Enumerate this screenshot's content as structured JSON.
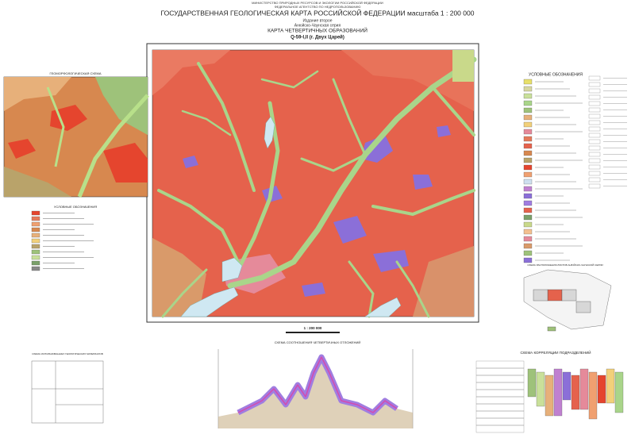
{
  "header": {
    "ministry": "МИНИСТЕРСТВО ПРИРОДНЫХ РЕСУРСОВ И ЭКОЛОГИИ РОССИЙСКОЙ ФЕДЕРАЦИИ",
    "agency": "ФЕДЕРАЛЬНОЕ АГЕНТСТВО ПО НЕДРОПОЛЬЗОВАНИЮ",
    "title": "ГОСУДАРСТВЕННАЯ ГЕОЛОГИЧЕСКАЯ КАРТА РОССИЙСКОЙ ФЕДЕРАЦИИ масштаба 1 : 200 000",
    "edition": "Издание второе",
    "series": "Анюйско-Чаунская серия",
    "map_title": "КАРТА ЧЕТВЕРТИЧНЫХ ОБРАЗОВАНИЙ",
    "sheet": "Q-59-I,II (г. Двух Царей)"
  },
  "geomorph_scheme": {
    "title": "ГЕОМОРФОЛОГИЧЕСКАЯ СХЕМА",
    "legend_title": "УСЛОВНЫЕ ОБОЗНАЧЕНИЯ"
  },
  "legend": {
    "title": "УСЛОВНЫЕ ОБОЗНАЧЕНИЯ"
  },
  "scale": "1 : 200 000",
  "profile": {
    "title": "СХЕМА СООТНОШЕНИЯ ЧЕТВЕРТИЧНЫХ ОТЛОЖЕНИЙ"
  },
  "materials_scheme": {
    "title": "СХЕМА ИСПОЛЬЗОВАННЫХ ГЕОЛОГИЧЕСКИХ МАТЕРИАЛОВ"
  },
  "location_scheme": {
    "title": "СХЕМА РАСПОЛОЖЕНИЯ ЛИСТОВ АНЮЙСКО-ЧАУНСКОЙ СЕРИИ"
  },
  "correlation": {
    "title": "СХЕМА КОРРЕЛЯЦИИ ПОДРАЗДЕЛЕНИЙ"
  }
}
